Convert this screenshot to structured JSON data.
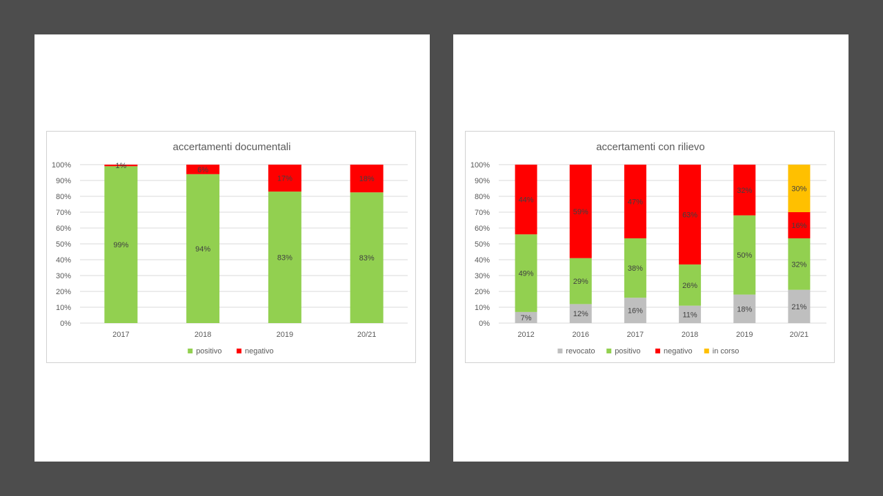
{
  "chart_data": [
    {
      "type": "bar",
      "stacked": true,
      "title": "accertamenti documentali",
      "categories": [
        "2017",
        "2018",
        "2019",
        "20/21"
      ],
      "ylim": [
        0,
        1
      ],
      "yticks": [
        "0%",
        "10%",
        "20%",
        "30%",
        "40%",
        "50%",
        "60%",
        "70%",
        "80%",
        "90%",
        "100%"
      ],
      "grid": true,
      "legend_position": "bottom",
      "series": [
        {
          "name": "positivo",
          "color": "#92d050",
          "values": [
            0.99,
            0.94,
            0.83,
            0.825
          ],
          "labels": [
            "99%",
            "94%",
            "83%",
            "83%"
          ]
        },
        {
          "name": "negativo",
          "color": "#ff0000",
          "values": [
            0.01,
            0.06,
            0.17,
            0.175
          ],
          "labels": [
            "1%",
            "6%",
            "17%",
            "18%"
          ]
        }
      ]
    },
    {
      "type": "bar",
      "stacked": true,
      "title": "accertamenti con rilievo",
      "categories": [
        "2012",
        "2016",
        "2017",
        "2018",
        "2019",
        "20/21"
      ],
      "ylim": [
        0,
        1
      ],
      "yticks": [
        "0%",
        "10%",
        "20%",
        "30%",
        "40%",
        "50%",
        "60%",
        "70%",
        "80%",
        "90%",
        "100%"
      ],
      "grid": true,
      "legend_position": "bottom",
      "series": [
        {
          "name": "revocato",
          "color": "#bfbfbf",
          "values": [
            0.07,
            0.12,
            0.16,
            0.11,
            0.18,
            0.21
          ],
          "labels": [
            "7%",
            "12%",
            "16%",
            "11%",
            "18%",
            "21%"
          ]
        },
        {
          "name": "positivo",
          "color": "#92d050",
          "values": [
            0.49,
            0.29,
            0.375,
            0.26,
            0.5,
            0.325
          ],
          "labels": [
            "49%",
            "29%",
            "38%",
            "26%",
            "50%",
            "32%"
          ]
        },
        {
          "name": "negativo",
          "color": "#ff0000",
          "values": [
            0.44,
            0.59,
            0.465,
            0.63,
            0.32,
            0.165
          ],
          "labels": [
            "44%",
            "59%",
            "47%",
            "63%",
            "32%",
            "16%"
          ]
        },
        {
          "name": "in corso",
          "color": "#ffc000",
          "values": [
            0,
            0,
            0,
            0,
            0,
            0.3
          ],
          "labels": [
            "",
            "",
            "",
            "",
            "",
            "30%"
          ]
        }
      ]
    }
  ]
}
